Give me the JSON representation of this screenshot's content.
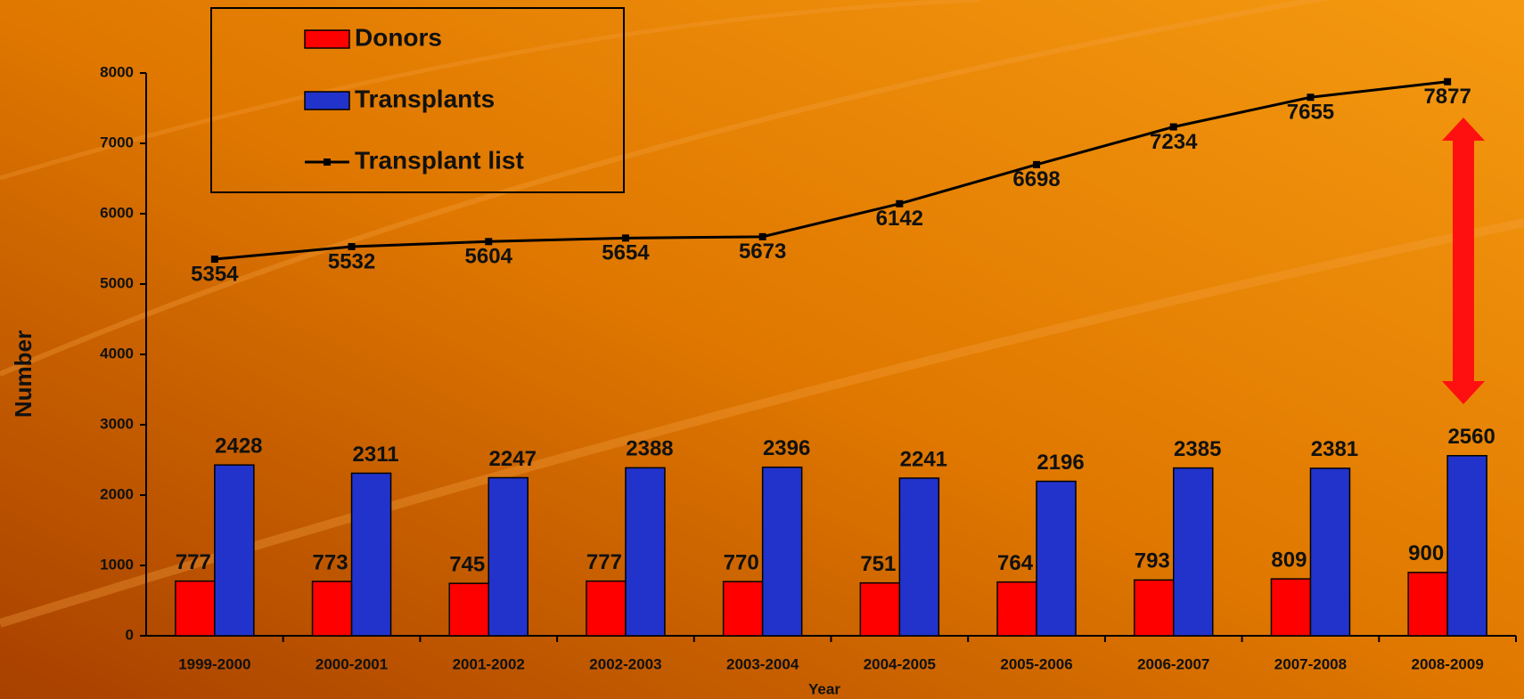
{
  "chart_data": {
    "type": "bar",
    "categories": [
      "1999-2000",
      "2000-2001",
      "2001-2002",
      "2002-2003",
      "2003-2004",
      "2004-2005",
      "2005-2006",
      "2006-2007",
      "2007-2008",
      "2008-2009"
    ],
    "series": [
      {
        "name": "Donors",
        "color": "#ff0000",
        "type": "bar",
        "values": [
          777,
          773,
          745,
          777,
          770,
          751,
          764,
          793,
          809,
          900
        ]
      },
      {
        "name": "Transplants",
        "color": "#2233cc",
        "type": "bar",
        "values": [
          2428,
          2311,
          2247,
          2388,
          2396,
          2241,
          2196,
          2385,
          2381,
          2560
        ]
      },
      {
        "name": "Transplant list",
        "color": "#000000",
        "type": "line",
        "values": [
          5354,
          5532,
          5604,
          5654,
          5673,
          6142,
          6698,
          7234,
          7655,
          7877
        ]
      }
    ],
    "x_label": "Year",
    "y_label": "Number",
    "ylim": [
      0,
      8000
    ],
    "yticks": [
      0,
      1000,
      2000,
      3000,
      4000,
      5000,
      6000,
      7000,
      8000
    ],
    "legend": "top-left"
  }
}
